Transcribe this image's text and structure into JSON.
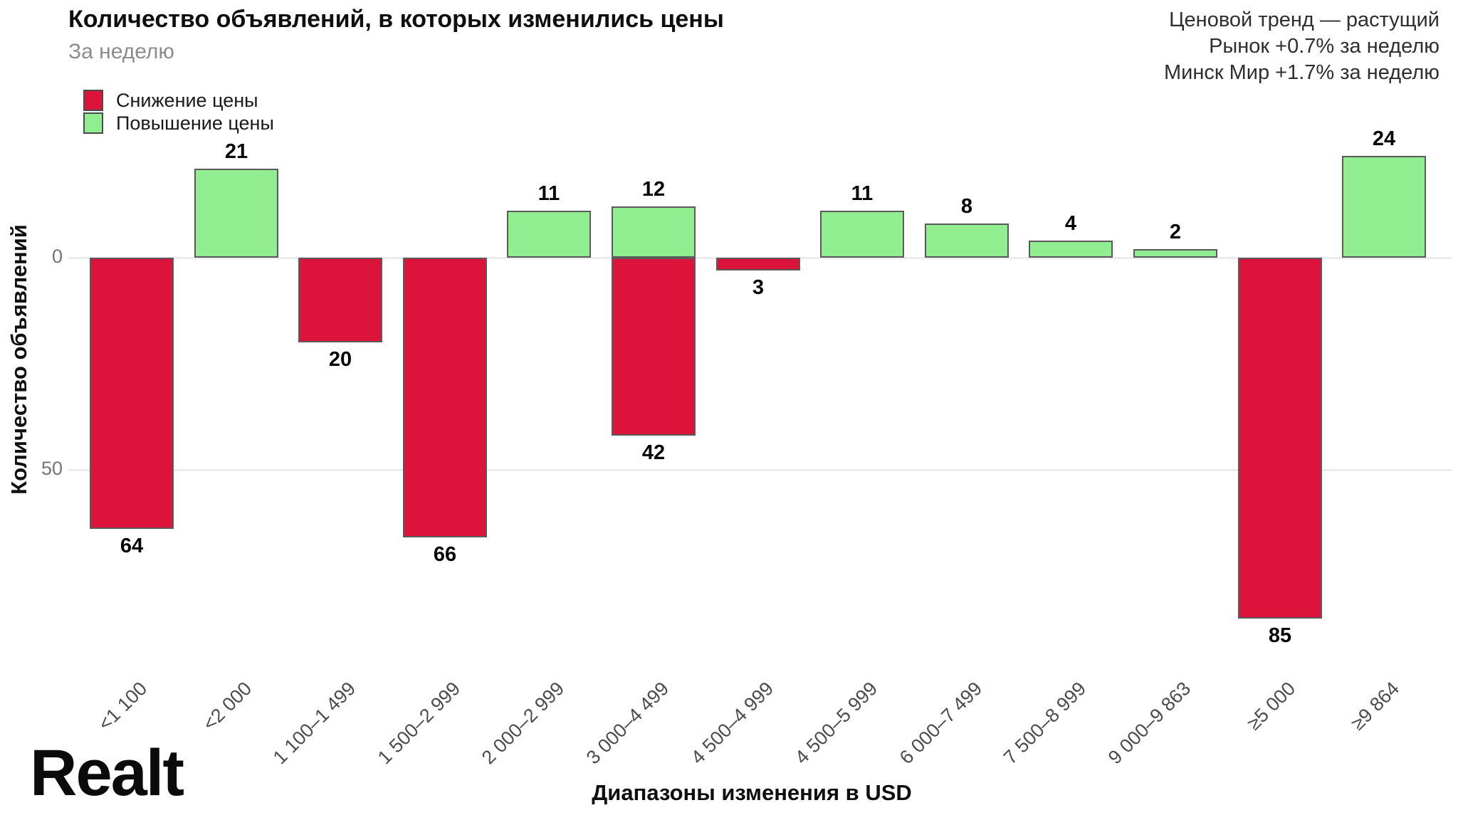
{
  "header": {
    "title": "Количество объявлений, в которых изменились цены",
    "subtitle": "За неделю"
  },
  "trend": {
    "lines": [
      "Ценовой тренд — растущий",
      "Рынок +0.7% за неделю",
      "Минск Мир +1.7% за неделю"
    ]
  },
  "legend": [
    {
      "label": "Снижение цены",
      "color": "#DC143C"
    },
    {
      "label": "Повышение цены",
      "color": "#90EE90"
    }
  ],
  "chart_data": {
    "type": "bar",
    "title": "Количество объявлений, в которых изменились цены",
    "subtitle": "За неделю",
    "xlabel": "Диапазоны изменения в USD",
    "ylabel": "Количество объявлений",
    "grid": true,
    "legend_position": "top-left",
    "y_ticks": [
      {
        "label": "0",
        "offset": 0
      },
      {
        "label": "50",
        "offset": 50
      }
    ],
    "ylim": [
      -90,
      30
    ],
    "categories": [
      "<1 100",
      "<2 000",
      "1 100–1 499",
      "1 500–2 999",
      "2 000–2 999",
      "3 000–4 499",
      "4 500–4 999",
      "4 500–5 999",
      "6 000–7 499",
      "7 500–8 999",
      "9 000–9 863",
      "≥5 000",
      "≥9 864"
    ],
    "series": [
      {
        "name": "Снижение цены",
        "direction": "down",
        "color": "#DC143C",
        "values": [
          64,
          0,
          20,
          66,
          0,
          42,
          3,
          0,
          0,
          0,
          0,
          85,
          0
        ]
      },
      {
        "name": "Повышение цены",
        "direction": "up",
        "color": "#90EE90",
        "values": [
          0,
          21,
          0,
          0,
          11,
          12,
          0,
          11,
          8,
          4,
          2,
          0,
          24
        ]
      }
    ]
  },
  "branding": {
    "logo_text": "Realt"
  }
}
